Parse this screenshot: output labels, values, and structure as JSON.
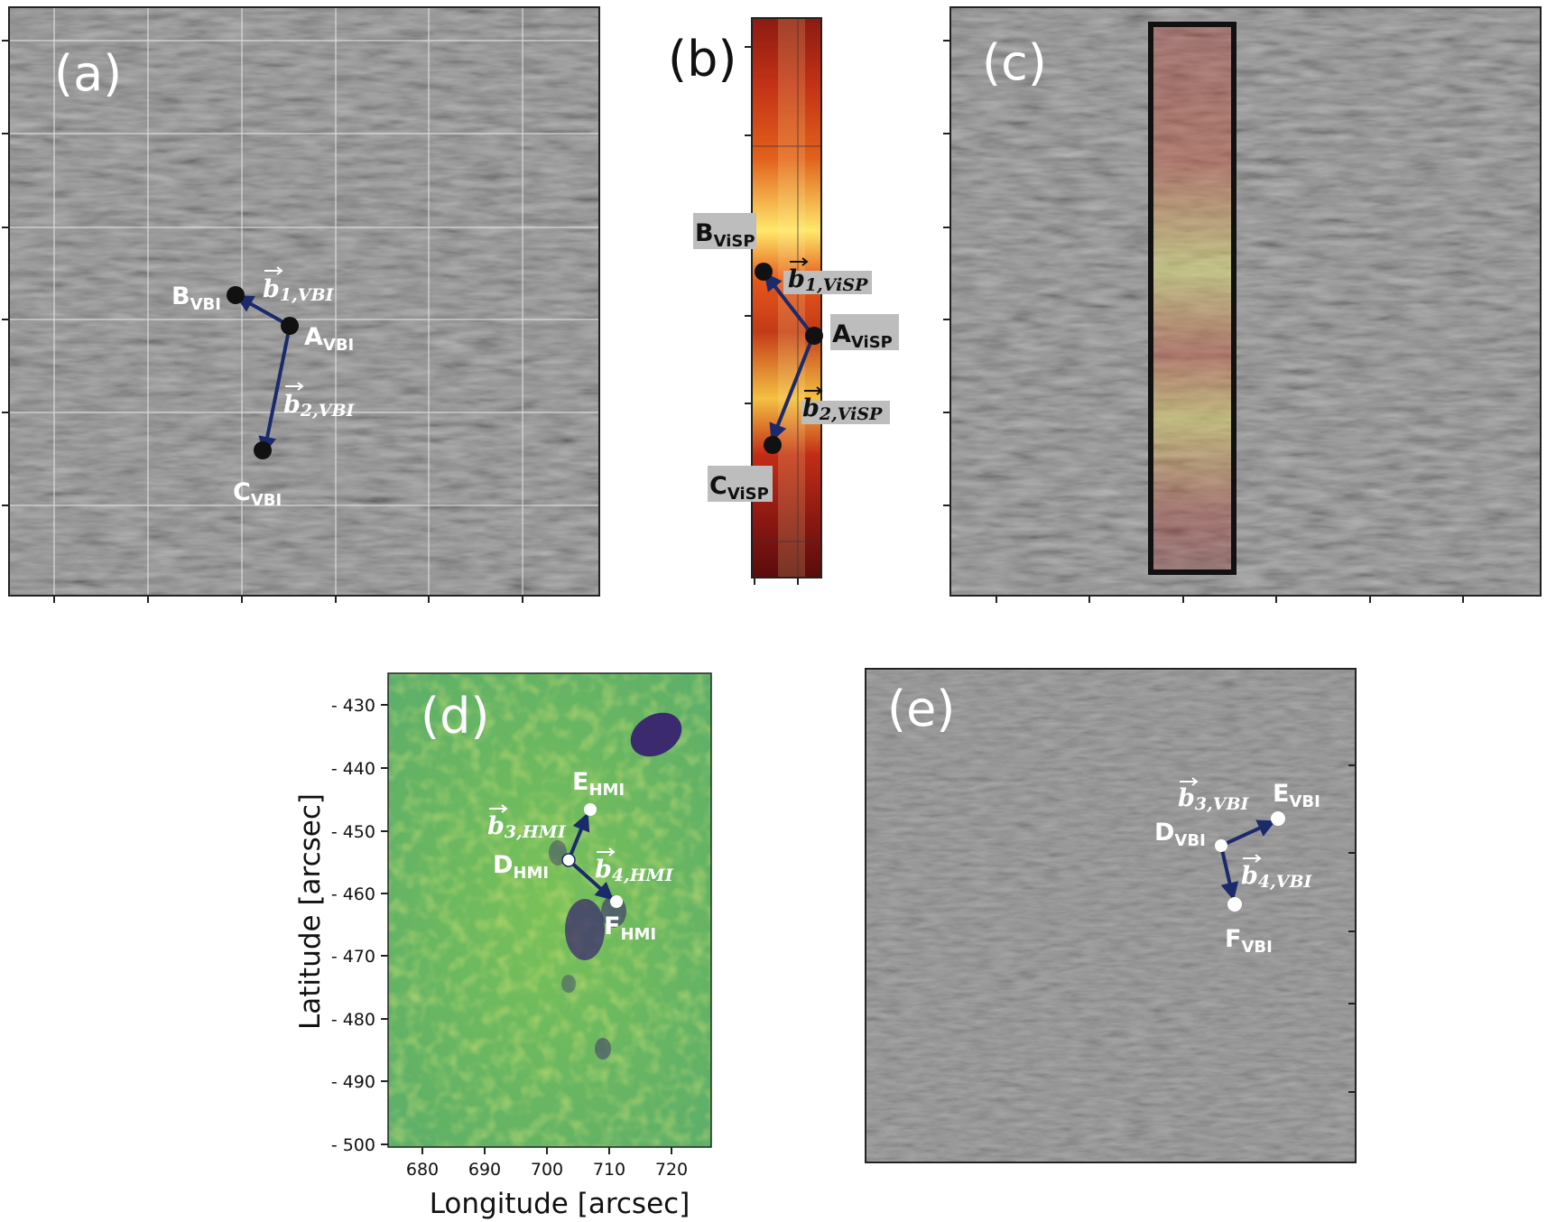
{
  "panels": {
    "a": {
      "label": "(a)",
      "points": {
        "B": "B",
        "B_sub": "VBI",
        "A": "A",
        "A_sub": "VBI",
        "C": "C",
        "C_sub": "VBI"
      },
      "vectors": {
        "b1": "b",
        "b1_sub": "1,VBI",
        "b2": "b",
        "b2_sub": "2,VBI"
      }
    },
    "b": {
      "label": "(b)",
      "points": {
        "B": "B",
        "B_sub": "ViSP",
        "A": "A",
        "A_sub": "ViSP",
        "C": "C",
        "C_sub": "ViSP"
      },
      "vectors": {
        "b1": "b",
        "b1_sub": "1,ViSP",
        "b2": "b",
        "b2_sub": "2,ViSP"
      }
    },
    "c": {
      "label": "(c)"
    },
    "d": {
      "label": "(d)",
      "points": {
        "E": "E",
        "E_sub": "HMI",
        "D": "D",
        "D_sub": "HMI",
        "F": "F",
        "F_sub": "HMI"
      },
      "vectors": {
        "b3": "b",
        "b3_sub": "3,HMI",
        "b4": "b",
        "b4_sub": "4,HMI"
      },
      "xaxis": {
        "title": "Longitude [arcsec]",
        "ticks": [
          "680",
          "690",
          "700",
          "710",
          "720"
        ]
      },
      "yaxis": {
        "title": "Latitude [arcsec]",
        "ticks": [
          "- 430",
          "- 440",
          "- 450",
          "- 460",
          "- 470",
          "- 480",
          "- 490",
          "- 500"
        ]
      }
    },
    "e": {
      "label": "(e)",
      "points": {
        "E": "E",
        "E_sub": "VBI",
        "D": "D",
        "D_sub": "VBI",
        "F": "F",
        "F_sub": "VBI"
      },
      "vectors": {
        "b3": "b",
        "b3_sub": "3,VBI",
        "b4": "b",
        "b4_sub": "4,VBI"
      }
    }
  },
  "colors": {
    "arrow": "#1b2a6b",
    "solar_gray": "#7a7a7a",
    "visp_red": "#c8311a",
    "visp_yellow": "#fff27a",
    "hmi_green": "#6fbf5c",
    "hmi_dark": "#3b2a6e"
  }
}
